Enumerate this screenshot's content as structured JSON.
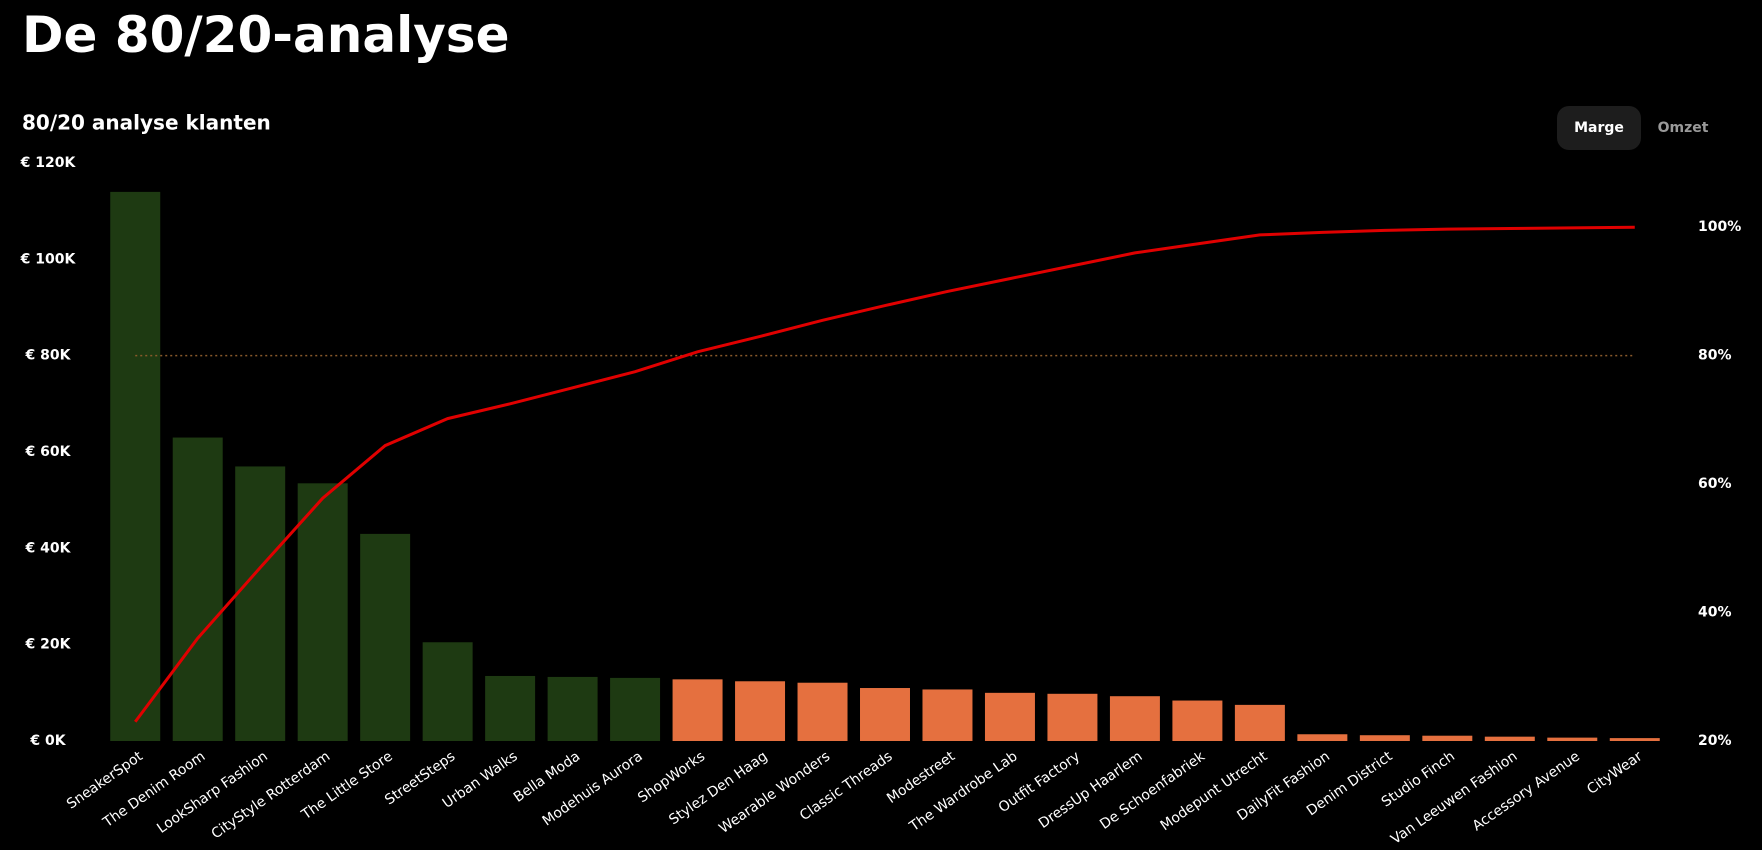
{
  "title": "De 80/20-analyse",
  "toggle": {
    "options": [
      "Marge",
      "Omzet"
    ],
    "active": 0
  },
  "chart_data": {
    "type": "pareto",
    "title": "80/20 analyse klanten",
    "categories": [
      "SneakerSpot",
      "The Denim Room",
      "LookSharp Fashion",
      "CityStyle Rotterdam",
      "The Little Store",
      "StreetSteps",
      "Urban Walks",
      "Bella Moda",
      "Modehuis Aurora",
      "ShopWorks",
      "Stylez Den Haag",
      "Wearable Wonders",
      "Classic Threads",
      "Modestreet",
      "The Wardrobe Lab",
      "Outfit Factory",
      "DressUp Haarlem",
      "De Schoenfabriek",
      "Modepunt Utrecht",
      "DailyFit Fashion",
      "Denim District",
      "Studio Finch",
      "Van Leeuwen Fashion",
      "Accessory Avenue",
      "CityWear"
    ],
    "series": [
      {
        "type": "bar",
        "values": [
          114000,
          63000,
          57000,
          53500,
          43000,
          20500,
          13500,
          13300,
          13100,
          12800,
          12400,
          12100,
          11000,
          10700,
          10000,
          9800,
          9300,
          8400,
          7500,
          1400,
          1200,
          1100,
          900,
          700,
          600
        ],
        "colors": [
          "#1e3a12",
          "#1e3a12",
          "#1e3a12",
          "#1e3a12",
          "#1e3a12",
          "#1e3a12",
          "#1e3a12",
          "#1e3a12",
          "#1e3a12",
          "#e5703f",
          "#e5703f",
          "#e5703f",
          "#e5703f",
          "#e5703f",
          "#e5703f",
          "#e5703f",
          "#e5703f",
          "#e5703f",
          "#e5703f",
          "#e5703f",
          "#e5703f",
          "#e5703f",
          "#e5703f",
          "#e5703f",
          "#e5703f"
        ]
      },
      {
        "type": "line",
        "axis": "y2",
        "color": "#e00000",
        "values": [
          23,
          36,
          47,
          57.8,
          66,
          70.2,
          72.5,
          75,
          77.5,
          80.6,
          83,
          85.5,
          87.8,
          90,
          92,
          94,
          96,
          97.4,
          98.8,
          99.2,
          99.5,
          99.7,
          99.8,
          99.9,
          100
        ]
      }
    ],
    "threshold": {
      "value": 80,
      "axis": "y2",
      "color": "#8a5a2a"
    },
    "ylim": [
      0,
      120000
    ],
    "yticks": [
      {
        "value": 0,
        "label": "€ 0K"
      },
      {
        "value": 20000,
        "label": "€ 20K"
      },
      {
        "value": 40000,
        "label": "€ 40K"
      },
      {
        "value": 60000,
        "label": "€ 60K"
      },
      {
        "value": 80000,
        "label": "€ 80K"
      },
      {
        "value": 100000,
        "label": "€ 100K"
      },
      {
        "value": 120000,
        "label": "€ 120K"
      }
    ],
    "y2lim": [
      20,
      110
    ],
    "y2ticks": [
      {
        "value": 20,
        "label": "20%"
      },
      {
        "value": 40,
        "label": "40%"
      },
      {
        "value": 60,
        "label": "60%"
      },
      {
        "value": 80,
        "label": "80%"
      },
      {
        "value": 100,
        "label": "100%"
      }
    ]
  }
}
